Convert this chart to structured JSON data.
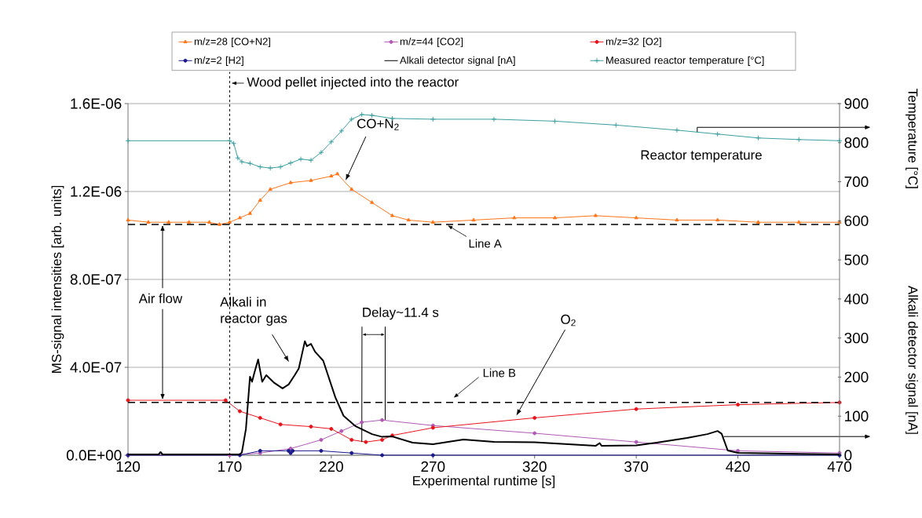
{
  "chart_data": {
    "type": "line",
    "xlabel": "Experimental runtime [s]",
    "ylabel": "MS-signal intensities [arb. units]",
    "y2label": "Temperature [°C]",
    "xlim": [
      120,
      470
    ],
    "xticks": [
      120,
      170,
      220,
      270,
      320,
      370,
      420,
      470
    ],
    "ylim": [
      0,
      1.6e-06
    ],
    "yticks": [
      {
        "value": 0,
        "label": "0.0E+00"
      },
      {
        "value": 4e-07,
        "label": "4.0E-07"
      },
      {
        "value": 8e-07,
        "label": "8.0E-07"
      },
      {
        "value": 1.2e-06,
        "label": "1.2E-06"
      },
      {
        "value": 1.6e-06,
        "label": "1.6E-06"
      }
    ],
    "y2lim": [
      0,
      900
    ],
    "y2ticks": [
      0,
      100,
      200,
      300,
      400,
      500,
      600,
      700,
      800,
      900
    ],
    "grid": "y",
    "legend": "top",
    "series": [
      {
        "name": "m/z=28 [CO+N2]",
        "color": "#ff7518",
        "marker": "triangle",
        "x": [
          120,
          130,
          140,
          150,
          160,
          165,
          170,
          175,
          180,
          185,
          190,
          200,
          210,
          220,
          223,
          230,
          240,
          250,
          258,
          270,
          290,
          310,
          330,
          350,
          370,
          390,
          410,
          430,
          450,
          470
        ],
        "values": [
          1.07e-06,
          1.06e-06,
          1.06e-06,
          1.06e-06,
          1.06e-06,
          1.05e-06,
          1.06e-06,
          1.08e-06,
          1.1e-06,
          1.16e-06,
          1.21e-06,
          1.24e-06,
          1.25e-06,
          1.27e-06,
          1.28e-06,
          1.21e-06,
          1.15e-06,
          1.09e-06,
          1.07e-06,
          1.06e-06,
          1.07e-06,
          1.08e-06,
          1.08e-06,
          1.09e-06,
          1.08e-06,
          1.07e-06,
          1.07e-06,
          1.06e-06,
          1.06e-06,
          1.06e-06
        ]
      },
      {
        "name": "m/z=44 [CO2]",
        "color": "#b05ab5",
        "marker": "circle",
        "x": [
          120,
          170,
          185,
          200,
          215,
          225,
          235,
          245,
          270,
          320,
          370,
          420,
          470
        ],
        "values": [
          0,
          0,
          1e-08,
          3e-08,
          7e-08,
          1.1e-07,
          1.5e-07,
          1.6e-07,
          1.35e-07,
          1e-07,
          6e-08,
          2e-08,
          1e-08
        ]
      },
      {
        "name": "m/z=32 [O2]",
        "color": "#e8141b",
        "marker": "circle",
        "x": [
          120,
          168,
          175,
          185,
          195,
          210,
          220,
          230,
          237,
          245,
          250,
          270,
          320,
          370,
          420,
          470
        ],
        "values": [
          2.5e-07,
          2.5e-07,
          2e-07,
          1.7e-07,
          1.4e-07,
          1.3e-07,
          1.2e-07,
          7e-08,
          6e-08,
          7e-08,
          9e-08,
          1.25e-07,
          1.7e-07,
          2.1e-07,
          2.3e-07,
          2.4e-07
        ]
      },
      {
        "name": "m/z=2 [H2]",
        "color": "#1a1a8c",
        "marker": "circle",
        "x": [
          120,
          175,
          185,
          199,
          200,
          201,
          215,
          230,
          245,
          270,
          470
        ],
        "values": [
          0,
          0,
          2e-08,
          2e-08,
          1e-08,
          2e-08,
          2e-08,
          1e-08,
          0,
          0,
          0
        ]
      },
      {
        "name": "Alkali detector signal [nA]",
        "color": "#000000",
        "marker": "none",
        "axis": "y2",
        "x": [
          120,
          135,
          136,
          137,
          175,
          176,
          178,
          180,
          181,
          182,
          184,
          186,
          188,
          192,
          196,
          199,
          202,
          204,
          207,
          208,
          210,
          212,
          216,
          222,
          226,
          232,
          240,
          245,
          250,
          260,
          270,
          285,
          300,
          320,
          350,
          352,
          353,
          370,
          380,
          395,
          405,
          410,
          412,
          415,
          420,
          470
        ],
        "values": [
          2,
          2,
          8,
          2,
          2,
          7,
          67,
          201,
          188,
          208,
          245,
          188,
          205,
          185,
          171,
          181,
          205,
          222,
          292,
          279,
          285,
          265,
          242,
          148,
          101,
          74,
          54,
          47,
          48,
          32,
          28,
          40,
          34,
          33,
          24,
          31,
          24,
          25,
          32,
          44,
          54,
          62,
          55,
          12,
          6,
          2
        ]
      },
      {
        "name": "Measured reactor temperature [°C]",
        "color": "#3a9fa0",
        "marker": "cross",
        "axis": "y2",
        "x": [
          120,
          170,
          172,
          174,
          176,
          180,
          185,
          190,
          195,
          200,
          205,
          210,
          215,
          220,
          225,
          230,
          235,
          240,
          250,
          270,
          300,
          330,
          360,
          390,
          410,
          430,
          450,
          470
        ],
        "values": [
          805,
          805,
          798,
          761,
          751,
          747,
          738,
          735,
          738,
          748,
          758,
          755,
          775,
          802,
          830,
          860,
          872,
          870,
          862,
          860,
          860,
          855,
          845,
          832,
          822,
          812,
          808,
          805
        ]
      }
    ],
    "ref_lines": [
      {
        "axis": "x",
        "value": 170,
        "label": "Wood pellet injected into the reactor",
        "line_style": "dotted",
        "color": "#000000"
      },
      {
        "axis": "y",
        "value": 1.05e-06,
        "label": "Line A",
        "line_style": "dashed",
        "color": "#000000"
      },
      {
        "axis": "y",
        "value": 2.4e-07,
        "label": "Line B",
        "line_style": "dashed",
        "color": "#000000"
      }
    ],
    "annotations": [
      {
        "text": "CO+N$_{2}$",
        "x": 227,
        "y": 1.25e-06
      },
      "Reactor temperature",
      {
        "text": "Air flow",
        "x": 137,
        "y": 1.05e-06
      },
      "Alkali in reactor gas",
      {
        "text": "Delay~11.4 s",
        "x": 235,
        "y": 6e-08
      },
      {
        "text": "O$_{2}$",
        "x": 311,
        "y": 1.8e-07
      },
      "Alkali detector signal [nA]"
    ]
  }
}
